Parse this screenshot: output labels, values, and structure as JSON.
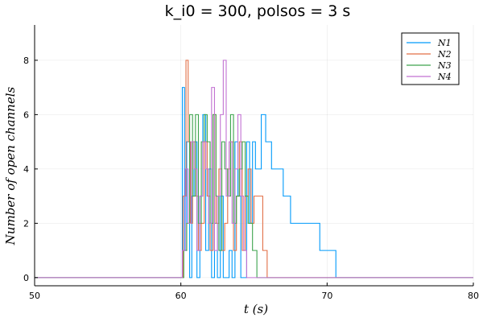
{
  "chart_data": {
    "type": "line",
    "step": "post",
    "title": "k_i0 = 300, polsos = 3 s",
    "xlabel": "t (s)",
    "ylabel": "Number of open channels",
    "xlim": [
      50,
      80
    ],
    "ylim": [
      -0.3,
      9.3
    ],
    "xticks": [
      50,
      60,
      70,
      80
    ],
    "yticks": [
      0,
      2,
      4,
      6,
      8
    ],
    "grid": true,
    "legend_position": "top-right",
    "series": [
      {
        "name": "N1",
        "color": "#009AFA",
        "x": [
          50,
          60.1,
          60.25,
          60.4,
          60.6,
          60.75,
          60.9,
          61.1,
          61.3,
          61.5,
          61.7,
          61.9,
          62.1,
          62.3,
          62.5,
          62.7,
          62.9,
          63.1,
          63.3,
          63.5,
          63.7,
          63.9,
          64.1,
          64.3,
          64.5,
          64.7,
          64.9,
          65.1,
          65.5,
          65.8,
          66.2,
          66.6,
          67.0,
          67.5,
          68.0,
          68.5,
          69.0,
          69.5,
          70.0,
          70.6,
          80
        ],
        "y": [
          0,
          7,
          1,
          5,
          0,
          3,
          5,
          0,
          3,
          6,
          1,
          4,
          0,
          2,
          0,
          3,
          0,
          0,
          1,
          0,
          5,
          3,
          0,
          0,
          5,
          2,
          5,
          4,
          6,
          5,
          4,
          4,
          3,
          2,
          2,
          2,
          2,
          1,
          1,
          0,
          0
        ]
      },
      {
        "name": "N2",
        "color": "#E26F46",
        "x": [
          50,
          60.15,
          60.35,
          60.5,
          60.65,
          60.8,
          61.0,
          61.2,
          61.4,
          61.6,
          61.8,
          62.0,
          62.2,
          62.4,
          62.6,
          62.8,
          63.0,
          63.2,
          63.4,
          63.6,
          63.8,
          64.0,
          64.2,
          64.4,
          64.6,
          64.8,
          65.0,
          65.3,
          65.6,
          65.9,
          80
        ],
        "y": [
          0,
          3,
          8,
          5,
          2,
          5,
          3,
          1,
          2,
          5,
          3,
          1,
          6,
          2,
          4,
          1,
          2,
          4,
          5,
          1,
          3,
          5,
          1,
          3,
          4,
          2,
          3,
          3,
          1,
          0,
          0
        ]
      },
      {
        "name": "N3",
        "color": "#3DA44D",
        "x": [
          50,
          60.2,
          60.4,
          60.6,
          60.8,
          61.0,
          61.2,
          61.4,
          61.6,
          61.8,
          62.0,
          62.2,
          62.4,
          62.6,
          62.8,
          63.0,
          63.2,
          63.4,
          63.6,
          63.8,
          64.0,
          64.2,
          64.4,
          64.6,
          64.9,
          65.2,
          80
        ],
        "y": [
          0,
          1,
          2,
          6,
          3,
          6,
          2,
          5,
          6,
          5,
          2,
          6,
          3,
          1,
          5,
          4,
          3,
          6,
          2,
          3,
          4,
          5,
          3,
          2,
          1,
          0,
          0
        ]
      },
      {
        "name": "N4",
        "color": "#C271D2",
        "x": [
          50,
          60.1,
          60.3,
          60.5,
          60.7,
          60.9,
          61.1,
          61.3,
          61.5,
          61.7,
          61.9,
          62.1,
          62.3,
          62.5,
          62.7,
          62.9,
          63.1,
          63.3,
          63.5,
          63.7,
          63.9,
          64.1,
          64.3,
          64.5,
          80
        ],
        "y": [
          0,
          1,
          4,
          2,
          5,
          4,
          1,
          3,
          5,
          4,
          2,
          7,
          1,
          3,
          6,
          8,
          3,
          5,
          2,
          4,
          6,
          3,
          1,
          0,
          0
        ]
      }
    ]
  }
}
